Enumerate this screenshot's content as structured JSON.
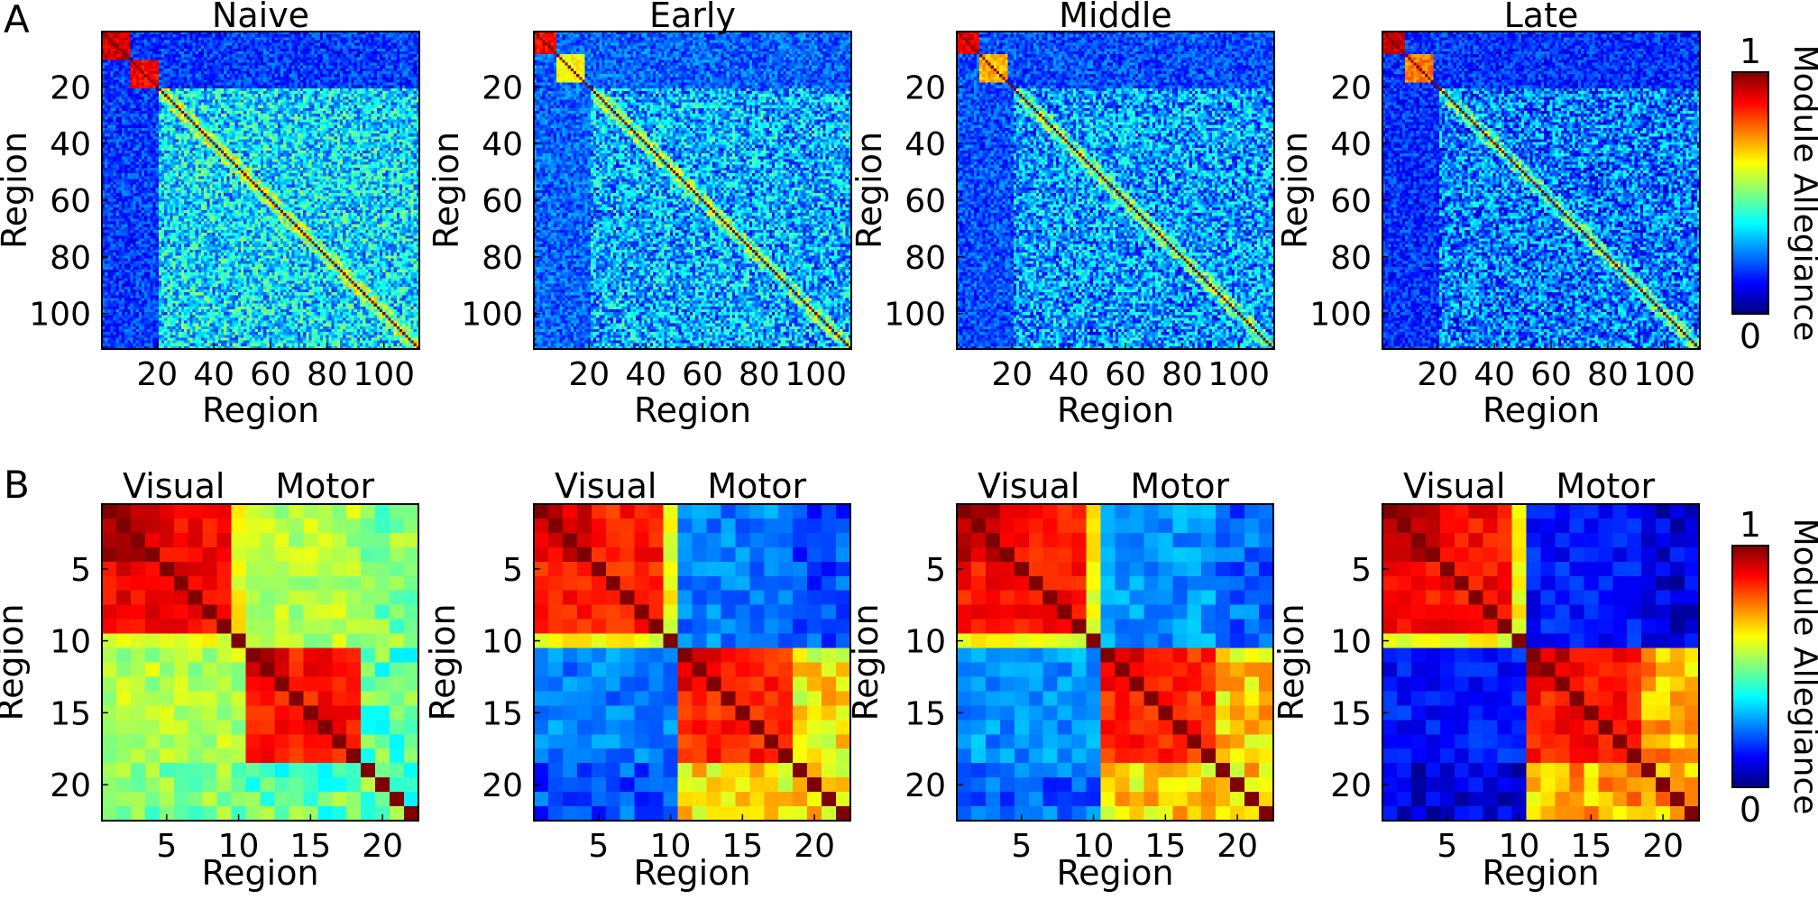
{
  "figure": {
    "panel_letters": [
      "A",
      "B"
    ],
    "colormap": "jet",
    "colormap_stops": [
      "#00007f",
      "#0000ff",
      "#007fff",
      "#00ffff",
      "#7fff7f",
      "#ffff00",
      "#ff7f00",
      "#ff0000",
      "#7f0000"
    ],
    "colorbar_label": "Module Allegiance",
    "colorbar_range": [
      0,
      1
    ],
    "colorbar_tick_labels": [
      "0",
      "1"
    ]
  },
  "chart_data": [
    {
      "type": "heatmap",
      "row": "A",
      "title": "Naive",
      "xlabel": "Region",
      "ylabel": "Region",
      "n": 112,
      "xticks": [
        20,
        40,
        60,
        80,
        100
      ],
      "yticks": [
        20,
        40,
        60,
        80,
        100
      ],
      "blocks": [
        {
          "range": [
            1,
            10
          ],
          "value": 0.92
        },
        {
          "range": [
            11,
            20
          ],
          "value": 0.88
        }
      ],
      "background": 0.18,
      "offdiag_mean": 0.35,
      "diagonal": 1.0
    },
    {
      "type": "heatmap",
      "row": "A",
      "title": "Early",
      "xlabel": "Region",
      "ylabel": "Region",
      "n": 112,
      "xticks": [
        20,
        40,
        60,
        80,
        100
      ],
      "yticks": [
        20,
        40,
        60,
        80,
        100
      ],
      "blocks": [
        {
          "range": [
            1,
            8
          ],
          "value": 0.88
        },
        {
          "range": [
            9,
            18
          ],
          "value": 0.62
        }
      ],
      "background": 0.22,
      "offdiag_mean": 0.3,
      "diagonal": 1.0
    },
    {
      "type": "heatmap",
      "row": "A",
      "title": "Middle",
      "xlabel": "Region",
      "ylabel": "Region",
      "n": 112,
      "xticks": [
        20,
        40,
        60,
        80,
        100
      ],
      "yticks": [
        20,
        40,
        60,
        80,
        100
      ],
      "blocks": [
        {
          "range": [
            1,
            8
          ],
          "value": 0.9
        },
        {
          "range": [
            9,
            18
          ],
          "value": 0.7
        }
      ],
      "background": 0.2,
      "offdiag_mean": 0.28,
      "diagonal": 1.0
    },
    {
      "type": "heatmap",
      "row": "A",
      "title": "Late",
      "xlabel": "Region",
      "ylabel": "Region",
      "n": 112,
      "xticks": [
        20,
        40,
        60,
        80,
        100
      ],
      "yticks": [
        20,
        40,
        60,
        80,
        100
      ],
      "blocks": [
        {
          "range": [
            1,
            8
          ],
          "value": 0.92
        },
        {
          "range": [
            9,
            18
          ],
          "value": 0.75
        }
      ],
      "background": 0.17,
      "offdiag_mean": 0.24,
      "diagonal": 1.0
    },
    {
      "type": "heatmap",
      "row": "B",
      "title": "",
      "xlabel": "Region",
      "ylabel": "Region",
      "n": 22,
      "xticks": [
        5,
        10,
        15,
        20
      ],
      "yticks": [
        5,
        10,
        15,
        20
      ],
      "group_labels": [
        "Visual",
        "Motor"
      ],
      "visual": [
        1,
        10
      ],
      "motor": [
        11,
        22
      ],
      "visual_within": 0.88,
      "motor_within": 0.86,
      "between": 0.55,
      "tail": 0.42,
      "diagonal": 1.0
    },
    {
      "type": "heatmap",
      "row": "B",
      "title": "",
      "xlabel": "Region",
      "ylabel": "Region",
      "n": 22,
      "xticks": [
        5,
        10,
        15,
        20
      ],
      "yticks": [
        5,
        10,
        15,
        20
      ],
      "group_labels": [
        "Visual",
        "Motor"
      ],
      "visual": [
        1,
        10
      ],
      "motor": [
        11,
        22
      ],
      "visual_within": 0.85,
      "motor_within": 0.84,
      "between": 0.25,
      "tail": 0.6,
      "diagonal": 1.0
    },
    {
      "type": "heatmap",
      "row": "B",
      "title": "",
      "xlabel": "Region",
      "ylabel": "Region",
      "n": 22,
      "xticks": [
        5,
        10,
        15,
        20
      ],
      "yticks": [
        5,
        10,
        15,
        20
      ],
      "group_labels": [
        "Visual",
        "Motor"
      ],
      "visual": [
        1,
        10
      ],
      "motor": [
        11,
        22
      ],
      "visual_within": 0.86,
      "motor_within": 0.84,
      "between": 0.27,
      "tail": 0.62,
      "diagonal": 1.0
    },
    {
      "type": "heatmap",
      "row": "B",
      "title": "",
      "xlabel": "Region",
      "ylabel": "Region",
      "n": 22,
      "xticks": [
        5,
        10,
        15,
        20
      ],
      "yticks": [
        5,
        10,
        15,
        20
      ],
      "group_labels": [
        "Visual",
        "Motor"
      ],
      "visual": [
        1,
        10
      ],
      "motor": [
        11,
        22
      ],
      "visual_within": 0.87,
      "motor_within": 0.86,
      "between": 0.14,
      "tail": 0.66,
      "diagonal": 1.0
    }
  ]
}
